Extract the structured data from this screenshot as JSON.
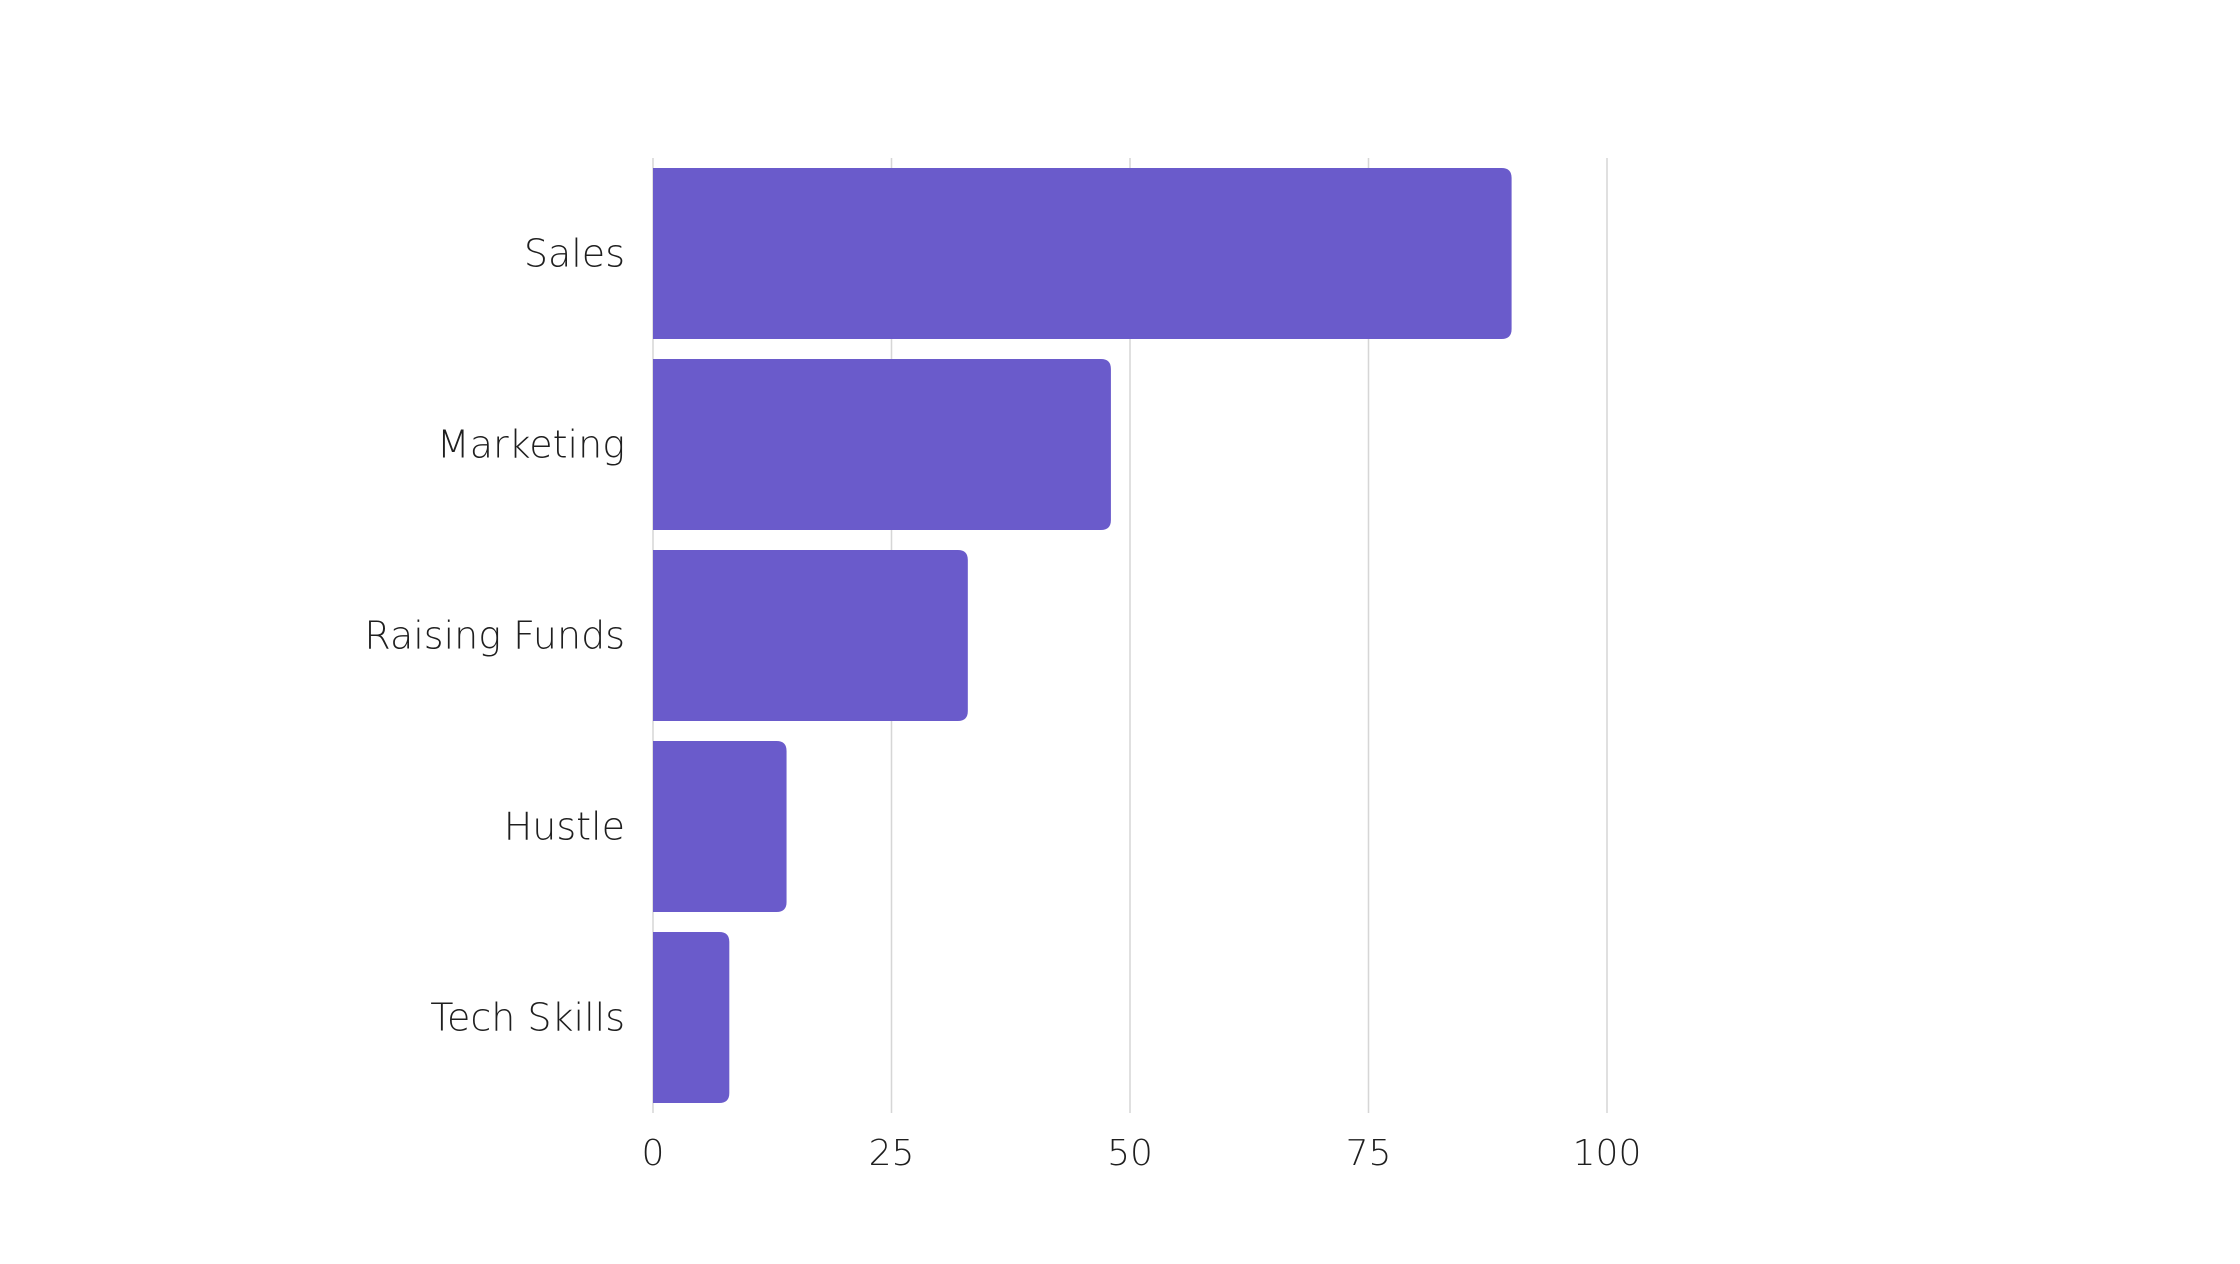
{
  "chart_data": {
    "type": "bar",
    "orientation": "horizontal",
    "categories": [
      "Sales",
      "Marketing",
      "Raising Funds",
      "Hustle",
      "Tech Skills"
    ],
    "values": [
      90,
      48,
      33,
      14,
      8
    ],
    "xlim": [
      0,
      100
    ],
    "x_ticks": [
      "0",
      "25",
      "50",
      "75",
      "100"
    ],
    "title": "",
    "xlabel": "",
    "ylabel": "",
    "grid": "vertical",
    "legend": "none",
    "colors": {
      "bar": "#6a5bcb",
      "grid": "#d6d6d6",
      "text": "#1f1f1f"
    }
  }
}
